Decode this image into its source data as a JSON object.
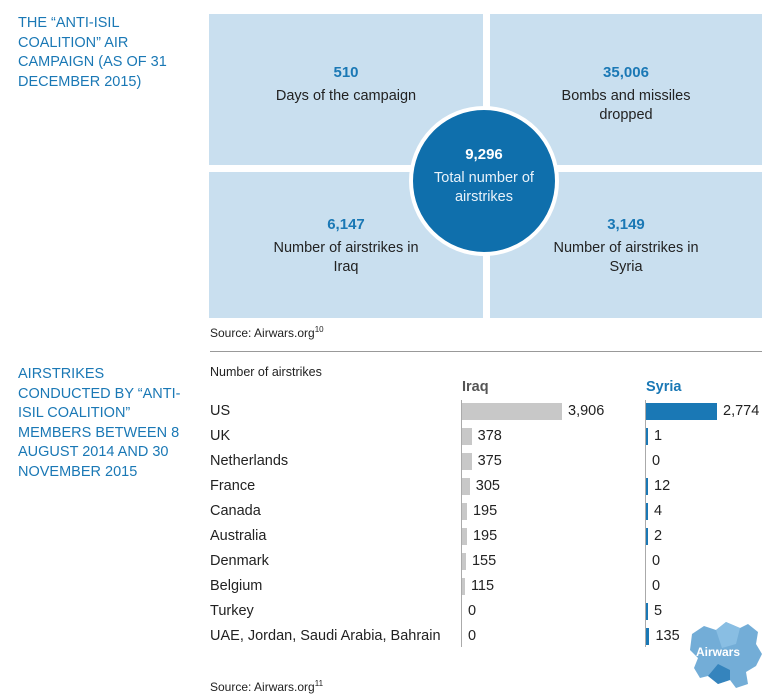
{
  "section1": {
    "title": "THE “ANTI-ISIL COALITION” AIR CAMPAIGN (AS OF 31 DECEMBER 2015)",
    "tiles": [
      {
        "value": "510",
        "label": "Days of the campaign"
      },
      {
        "value": "35,006",
        "label": "Bombs and missiles dropped"
      },
      {
        "value": "6,147",
        "label": "Number of airstrikes in Iraq"
      },
      {
        "value": "3,149",
        "label": "Number of airstrikes in Syria"
      }
    ],
    "center": {
      "value": "9,296",
      "label": "Total number of airstrikes"
    },
    "source": "Source: Airwars.org",
    "source_note": "10"
  },
  "section2": {
    "title": "AIRSTRIKES CONDUCTED BY “ANTI-ISIL COALITION” MEMBERS BETWEEN 8 AUGUST 2014 AND 30 NOVEMBER 2015",
    "source": "Source: Airwars.org",
    "source_note": "11"
  },
  "chart_data": {
    "type": "bar",
    "title": "",
    "xlabel": "",
    "ylabel": "Number of airstrikes",
    "categories": [
      "US",
      "UK",
      "Netherlands",
      "France",
      "Canada",
      "Australia",
      "Denmark",
      "Belgium",
      "Turkey",
      "UAE, Jordan, Saudi Arabia, Bahrain"
    ],
    "series": [
      {
        "name": "Iraq",
        "values": [
          3906,
          378,
          375,
          305,
          195,
          195,
          155,
          115,
          0,
          0
        ],
        "labels": [
          "3,906",
          "378",
          "375",
          "305",
          "195",
          "195",
          "155",
          "115",
          "0",
          "0"
        ],
        "color": "#c8c8c8"
      },
      {
        "name": "Syria",
        "values": [
          2774,
          1,
          0,
          12,
          4,
          2,
          0,
          0,
          5,
          135
        ],
        "labels": [
          "2,774",
          "1",
          "0",
          "12",
          "4",
          "2",
          "0",
          "0",
          "5",
          "135"
        ],
        "color": "#1a78b5"
      }
    ]
  },
  "logo": {
    "text": "Airwars"
  },
  "colors": {
    "accent": "#1a78b5",
    "tile": "#c9dfef",
    "circle": "#0f6fac",
    "iraq_bar": "#c8c8c8"
  }
}
